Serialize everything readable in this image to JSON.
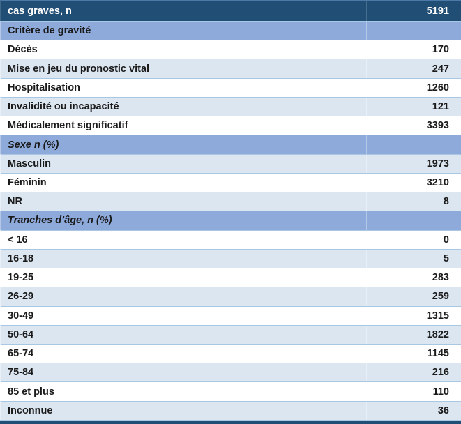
{
  "table": {
    "title": "cas graves, n",
    "colors": {
      "header_bg": "#214e75",
      "section_bg": "#8eaadb",
      "band_bg": "#dce6f1",
      "row_border": "#a9c6e3",
      "header_text": "#ffffff",
      "body_text": "#1a1a1a"
    },
    "rows": [
      {
        "label": "cas graves, n",
        "value": "5191",
        "type": "header"
      },
      {
        "label": "Critère de gravité",
        "value": "",
        "type": "section"
      },
      {
        "label": "Décès",
        "value": "170",
        "type": "data"
      },
      {
        "label": "Mise en jeu du pronostic vital",
        "value": "247",
        "type": "data"
      },
      {
        "label": "Hospitalisation",
        "value": "1260",
        "type": "data"
      },
      {
        "label": "Invalidité ou incapacité",
        "value": "121",
        "type": "data"
      },
      {
        "label": "Médicalement significatif",
        "value": "3393",
        "type": "data"
      },
      {
        "label": "Sexe n (%)",
        "value": "",
        "type": "section-italic"
      },
      {
        "label": "Masculin",
        "value": "1973",
        "type": "data"
      },
      {
        "label": "Féminin",
        "value": "3210",
        "type": "data"
      },
      {
        "label": "NR",
        "value": "8",
        "type": "data"
      },
      {
        "label": "Tranches d’âge, n (%)",
        "value": "",
        "type": "section-italic"
      },
      {
        "label": "< 16",
        "value": "0",
        "type": "data"
      },
      {
        "label": "16-18",
        "value": "5",
        "type": "data"
      },
      {
        "label": "19-25",
        "value": "283",
        "type": "data"
      },
      {
        "label": "26-29",
        "value": "259",
        "type": "data"
      },
      {
        "label": "30-49",
        "value": "1315",
        "type": "data"
      },
      {
        "label": "50-64",
        "value": "1822",
        "type": "data"
      },
      {
        "label": "65-74",
        "value": "1145",
        "type": "data"
      },
      {
        "label": "75-84",
        "value": "216",
        "type": "data"
      },
      {
        "label": "85 et plus",
        "value": "110",
        "type": "data"
      },
      {
        "label": "Inconnue",
        "value": "36",
        "type": "data"
      }
    ]
  }
}
